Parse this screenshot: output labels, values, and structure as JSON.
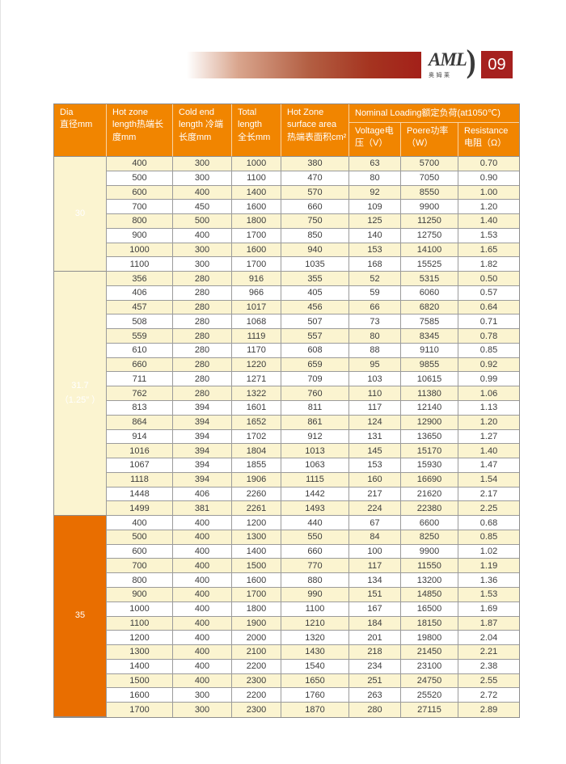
{
  "header": {
    "logo_text": "AML",
    "logo_subtext": "奥姆莱",
    "page_number": "09"
  },
  "colors": {
    "header_orange": "#f18500",
    "group_orange": "#e96e00",
    "row_yellow": "#fbf4d0",
    "badge_red": "#a6211f",
    "gradient_red": "#a32019"
  },
  "table": {
    "headers": {
      "dia": "Dia\n直径mm",
      "hot_zone_length": "Hot zone\nlength热端长\n度mm",
      "cold_end_length": "Cold end\nlength 冷端\n长度mm",
      "total_length": "Total\nlength\n全长mm",
      "surface_area": "Hot Zone\nsurface area\n热端表面积cm²",
      "nominal_loading": "Nominal Loading额定负荷(at1050℃)",
      "voltage": "Voltage电\n压（V）",
      "power": "Poere功率\n（W）",
      "resistance": "Resistance\n电阻（Ω）"
    },
    "groups": [
      {
        "label": "30",
        "rows": [
          [
            "400",
            "300",
            "1000",
            "380",
            "63",
            "5700",
            "0.70"
          ],
          [
            "500",
            "300",
            "1100",
            "470",
            "80",
            "7050",
            "0.90"
          ],
          [
            "600",
            "400",
            "1400",
            "570",
            "92",
            "8550",
            "1.00"
          ],
          [
            "700",
            "450",
            "1600",
            "660",
            "109",
            "9900",
            "1.20"
          ],
          [
            "800",
            "500",
            "1800",
            "750",
            "125",
            "11250",
            "1.40"
          ],
          [
            "900",
            "400",
            "1700",
            "850",
            "140",
            "12750",
            "1.53"
          ],
          [
            "1000",
            "300",
            "1600",
            "940",
            "153",
            "14100",
            "1.65"
          ],
          [
            "1100",
            "300",
            "1700",
            "1035",
            "168",
            "15525",
            "1.82"
          ]
        ]
      },
      {
        "label": "31.7\n（1.25″ ）",
        "rows": [
          [
            "356",
            "280",
            "916",
            "355",
            "52",
            "5315",
            "0.50"
          ],
          [
            "406",
            "280",
            "966",
            "405",
            "59",
            "6060",
            "0.57"
          ],
          [
            "457",
            "280",
            "1017",
            "456",
            "66",
            "6820",
            "0.64"
          ],
          [
            "508",
            "280",
            "1068",
            "507",
            "73",
            "7585",
            "0.71"
          ],
          [
            "559",
            "280",
            "1119",
            "557",
            "80",
            "8345",
            "0.78"
          ],
          [
            "610",
            "280",
            "1170",
            "608",
            "88",
            "9110",
            "0.85"
          ],
          [
            "660",
            "280",
            "1220",
            "659",
            "95",
            "9855",
            "0.92"
          ],
          [
            "711",
            "280",
            "1271",
            "709",
            "103",
            "10615",
            "0.99"
          ],
          [
            "762",
            "280",
            "1322",
            "760",
            "110",
            "11380",
            "1.06"
          ],
          [
            "813",
            "394",
            "1601",
            "811",
            "117",
            "12140",
            "1.13"
          ],
          [
            "864",
            "394",
            "1652",
            "861",
            "124",
            "12900",
            "1.20"
          ],
          [
            "914",
            "394",
            "1702",
            "912",
            "131",
            "13650",
            "1.27"
          ],
          [
            "1016",
            "394",
            "1804",
            "1013",
            "145",
            "15170",
            "1.40"
          ],
          [
            "1067",
            "394",
            "1855",
            "1063",
            "153",
            "15930",
            "1.47"
          ],
          [
            "1118",
            "394",
            "1906",
            "1115",
            "160",
            "16690",
            "1.54"
          ],
          [
            "1448",
            "406",
            "2260",
            "1442",
            "217",
            "21620",
            "2.17"
          ],
          [
            "1499",
            "381",
            "2261",
            "1493",
            "224",
            "22380",
            "2.25"
          ]
        ]
      },
      {
        "label": "35",
        "rows": [
          [
            "400",
            "400",
            "1200",
            "440",
            "67",
            "6600",
            "0.68"
          ],
          [
            "500",
            "400",
            "1300",
            "550",
            "84",
            "8250",
            "0.85"
          ],
          [
            "600",
            "400",
            "1400",
            "660",
            "100",
            "9900",
            "1.02"
          ],
          [
            "700",
            "400",
            "1500",
            "770",
            "117",
            "11550",
            "1.19"
          ],
          [
            "800",
            "400",
            "1600",
            "880",
            "134",
            "13200",
            "1.36"
          ],
          [
            "900",
            "400",
            "1700",
            "990",
            "151",
            "14850",
            "1.53"
          ],
          [
            "1000",
            "400",
            "1800",
            "1100",
            "167",
            "16500",
            "1.69"
          ],
          [
            "1100",
            "400",
            "1900",
            "1210",
            "184",
            "18150",
            "1.87"
          ],
          [
            "1200",
            "400",
            "2000",
            "1320",
            "201",
            "19800",
            "2.04"
          ],
          [
            "1300",
            "400",
            "2100",
            "1430",
            "218",
            "21450",
            "2.21"
          ],
          [
            "1400",
            "400",
            "2200",
            "1540",
            "234",
            "23100",
            "2.38"
          ],
          [
            "1500",
            "400",
            "2300",
            "1650",
            "251",
            "24750",
            "2.55"
          ],
          [
            "1600",
            "300",
            "2200",
            "1760",
            "263",
            "25520",
            "2.72"
          ],
          [
            "1700",
            "300",
            "2300",
            "1870",
            "280",
            "27115",
            "2.89"
          ]
        ]
      }
    ]
  }
}
